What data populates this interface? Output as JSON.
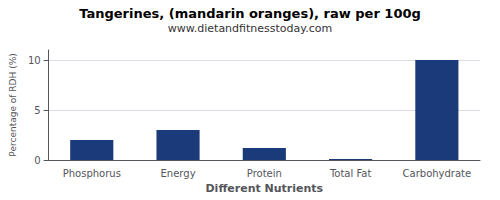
{
  "chart_data": {
    "type": "bar",
    "title": "Tangerines, (mandarin oranges), raw per 100g",
    "subtitle": "www.dietandfitnesstoday.com",
    "xlabel": "Different Nutrients",
    "ylabel": "Percentage of RDH (%)",
    "categories": [
      "Phosphorus",
      "Energy",
      "Protein",
      "Total Fat",
      "Carbohydrate"
    ],
    "values": [
      2.0,
      3.0,
      1.2,
      0.1,
      10.0
    ],
    "color": "#1a3a7a",
    "ylim": [
      0,
      11
    ],
    "yticks": [
      0,
      5,
      10
    ],
    "grid": true
  }
}
